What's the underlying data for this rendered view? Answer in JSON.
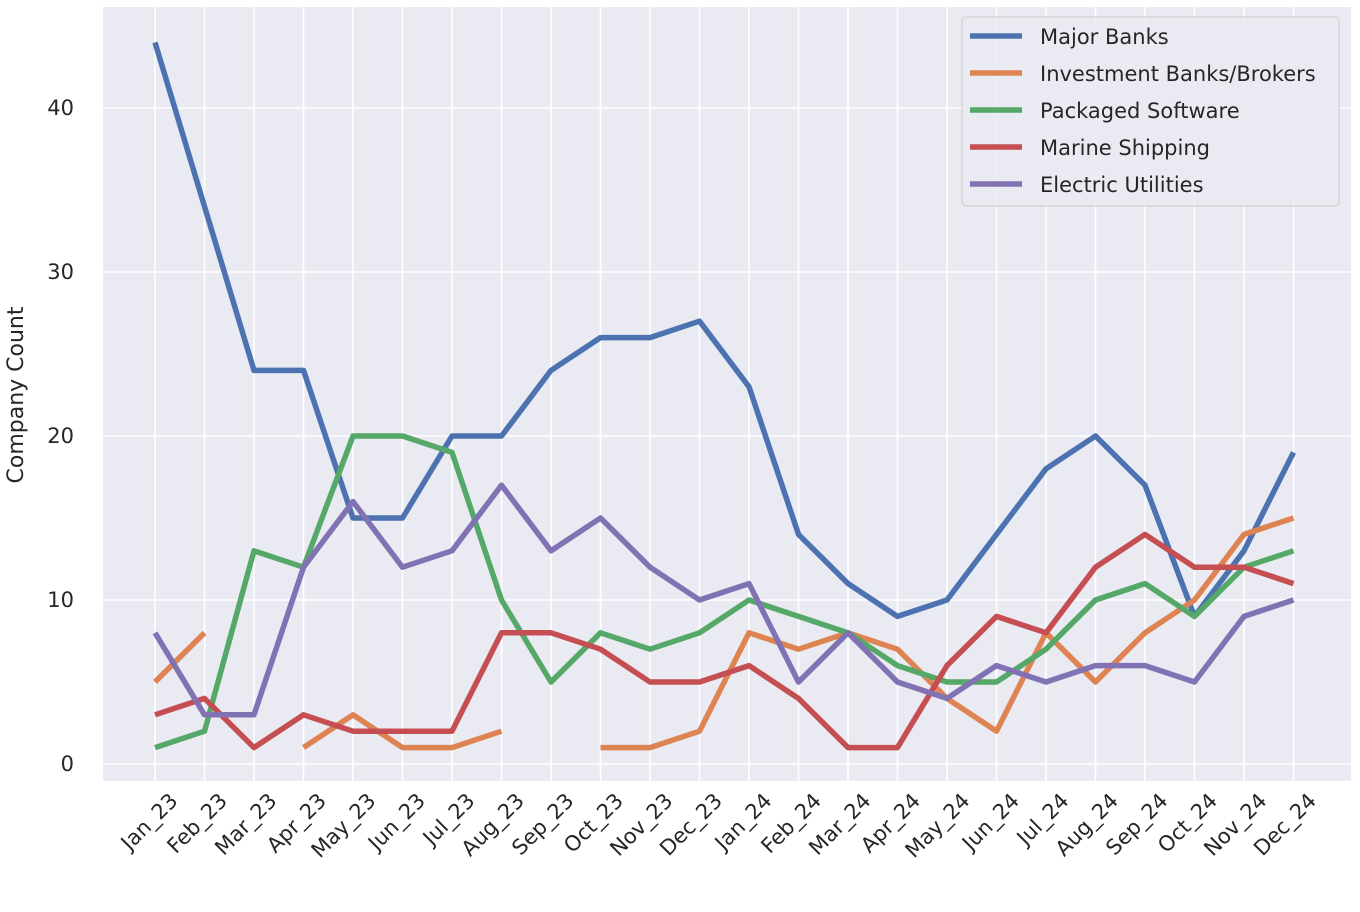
{
  "chart_data": {
    "type": "line",
    "title": "",
    "xlabel": "",
    "ylabel": "Company Count",
    "ylim": [
      -1,
      46
    ],
    "yticks": [
      0,
      10,
      20,
      30,
      40
    ],
    "grid": true,
    "legend_position": "top-right",
    "categories": [
      "Jan_23",
      "Feb_23",
      "Mar_23",
      "Apr_23",
      "May_23",
      "Jun_23",
      "Jul_23",
      "Aug_23",
      "Sep_23",
      "Oct_23",
      "Nov_23",
      "Dec_23",
      "Jan_24",
      "Feb_24",
      "Mar_24",
      "Apr_24",
      "May_24",
      "Jun_24",
      "Jul_24",
      "Aug_24",
      "Sep_24",
      "Oct_24",
      "Nov_24",
      "Dec_24"
    ],
    "series": [
      {
        "name": "Major Banks",
        "color": "#4c72b0",
        "values": [
          44,
          34,
          24,
          24,
          15,
          15,
          20,
          20,
          24,
          26,
          26,
          27,
          23,
          14,
          11,
          9,
          10,
          14,
          18,
          20,
          17,
          9,
          13,
          19
        ]
      },
      {
        "name": "Investment Banks/Brokers",
        "color": "#dd8452",
        "values": [
          5,
          8,
          null,
          1,
          3,
          1,
          1,
          2,
          null,
          1,
          1,
          2,
          8,
          7,
          8,
          7,
          4,
          2,
          8,
          5,
          8,
          10,
          14,
          15
        ]
      },
      {
        "name": "Packaged Software",
        "color": "#55a868",
        "values": [
          1,
          2,
          13,
          12,
          20,
          20,
          19,
          10,
          5,
          8,
          7,
          8,
          10,
          9,
          8,
          6,
          5,
          5,
          7,
          10,
          11,
          9,
          12,
          13
        ]
      },
      {
        "name": "Marine Shipping",
        "color": "#c44e52",
        "values": [
          3,
          4,
          1,
          3,
          2,
          2,
          2,
          8,
          8,
          7,
          5,
          5,
          6,
          4,
          1,
          1,
          6,
          9,
          8,
          12,
          14,
          12,
          12,
          11
        ]
      },
      {
        "name": "Electric Utilities",
        "color": "#8172b3",
        "values": [
          8,
          3,
          3,
          12,
          16,
          12,
          13,
          17,
          13,
          15,
          12,
          10,
          11,
          5,
          8,
          5,
          4,
          6,
          5,
          6,
          6,
          5,
          9,
          10
        ]
      }
    ]
  }
}
